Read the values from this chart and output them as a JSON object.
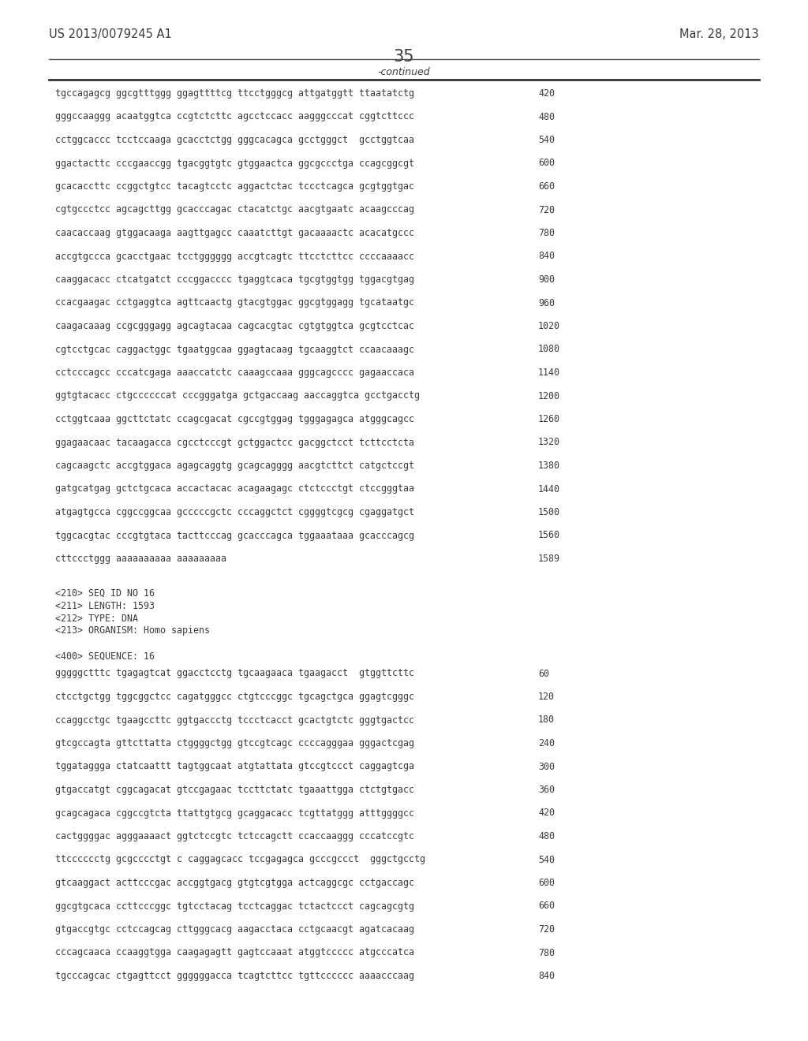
{
  "header_left": "US 2013/0079245 A1",
  "header_right": "Mar. 28, 2013",
  "page_number": "35",
  "continued_label": "-continued",
  "background_color": "#ffffff",
  "text_color": "#3a3a3a",
  "line_color": "#555555",
  "seq_lines_1": [
    [
      "tgccagagcg ggcgtttggg ggagttttcg ttcctgggcg attgatggtt ttaatatctg",
      "420"
    ],
    [
      "gggccaaggg acaatggtca ccgtctcttc agcctccacc aagggcccat cggtcttccc",
      "480"
    ],
    [
      "cctggcaccc tcctccaaga gcacctctgg gggcacagca gcctgggct  gcctggtcaa",
      "540"
    ],
    [
      "ggactacttc cccgaaccgg tgacggtgtc gtggaactca ggcgccctga ccagcggcgt",
      "600"
    ],
    [
      "gcacaccttc ccggctgtcc tacagtcctc aggactctac tccctcagca gcgtggtgac",
      "660"
    ],
    [
      "cgtgccctcc agcagcttgg gcacccagac ctacatctgc aacgtgaatc acaagcccag",
      "720"
    ],
    [
      "caacaccaag gtggacaaga aagttgagcc caaatcttgt gacaaaactc acacatgccc",
      "780"
    ],
    [
      "accgtgccca gcacctgaac tcctgggggg accgtcagtc ttcctcttcc ccccaaaacc",
      "840"
    ],
    [
      "caaggacacc ctcatgatct cccggacccc tgaggtcaca tgcgtggtgg tggacgtgag",
      "900"
    ],
    [
      "ccacgaagac cctgaggtca agttcaactg gtacgtggac ggcgtggagg tgcataatgc",
      "960"
    ],
    [
      "caagacaaag ccgcgggagg agcagtacaa cagcacgtac cgtgtggtca gcgtcctcac",
      "1020"
    ],
    [
      "cgtcctgcac caggactggc tgaatggcaa ggagtacaag tgcaaggtct ccaacaaagc",
      "1080"
    ],
    [
      "cctcccagcc cccatcgaga aaaccatctc caaagccaaa gggcagcccc gagaaccaca",
      "1140"
    ],
    [
      "ggtgtacacc ctgccccccat cccgggatga gctgaccaag aaccaggtca gcctgacctg",
      "1200"
    ],
    [
      "cctggtcaaa ggcttctatc ccagcgacat cgccgtggag tgggagagca atgggcagcc",
      "1260"
    ],
    [
      "ggagaacaac tacaagacca cgcctcccgt gctggactcc gacggctcct tcttcctcta",
      "1320"
    ],
    [
      "cagcaagctc accgtggaca agagcaggtg gcagcagggg aacgtcttct catgctccgt",
      "1380"
    ],
    [
      "gatgcatgag gctctgcaca accactacac acagaagagc ctctccctgt ctccgggtaa",
      "1440"
    ],
    [
      "atgagtgcca cggccggcaa gcccccgctc cccaggctct cggggtcgcg cgaggatgct",
      "1500"
    ],
    [
      "tggcacgtac cccgtgtaca tacttcccag gcacccagca tggaaataaa gcacccagcg",
      "1560"
    ],
    [
      "cttccctggg aaaaaaaaaa aaaaaaaaa",
      "1589"
    ]
  ],
  "metadata": [
    "<210> SEQ ID NO 16",
    "<211> LENGTH: 1593",
    "<212> TYPE: DNA",
    "<213> ORGANISM: Homo sapiens",
    "",
    "<400> SEQUENCE: 16"
  ],
  "seq_lines_2": [
    [
      "gggggctttc tgagagtcat ggacctcctg tgcaagaaca tgaagacct  gtggttcttc",
      "60"
    ],
    [
      "ctcctgctgg tggcggctcc cagatgggcc ctgtcccggc tgcagctgca ggagtcgggc",
      "120"
    ],
    [
      "ccaggcctgc tgaagccttc ggtgaccctg tccctcacct gcactgtctc gggtgactcc",
      "180"
    ],
    [
      "gtcgccagta gttcttatta ctggggctgg gtccgtcagc ccccagggaa gggactcgag",
      "240"
    ],
    [
      "tggataggga ctatcaattt tagtggcaat atgtattata gtccgtccct caggagtcga",
      "300"
    ],
    [
      "gtgaccatgt cggcagacat gtccgagaac tccttctatc tgaaattgga ctctgtgacc",
      "360"
    ],
    [
      "gcagcagaca cggccgtcta ttattgtgcg gcaggacacc tcgttatggg atttggggcc",
      "420"
    ],
    [
      "cactggggac agggaaaact ggtctccgtc tctccagctt ccaccaaggg cccatccgtc",
      "480"
    ],
    [
      "ttcccccctg gcgcccctgt c caggagcacc tccgagagca gcccgccct  gggctgcctg",
      "540"
    ],
    [
      "gtcaaggact acttcccgac accggtgacg gtgtcgtgga actcaggcgc cctgaccagc",
      "600"
    ],
    [
      "ggcgtgcaca ccttcccggc tgtcctacag tcctcaggac tctactccct cagcagcgtg",
      "660"
    ],
    [
      "gtgaccgtgc cctccagcag cttgggcacg aagacctaca cctgcaacgt agatcacaag",
      "720"
    ],
    [
      "cccagcaaca ccaaggtgga caagagagtt gagtccaaat atggtccccc atgcccatca",
      "780"
    ],
    [
      "tgcccagcac ctgagttcct ggggggacca tcagtcttcc tgttcccccc aaaacccaag",
      "840"
    ]
  ]
}
